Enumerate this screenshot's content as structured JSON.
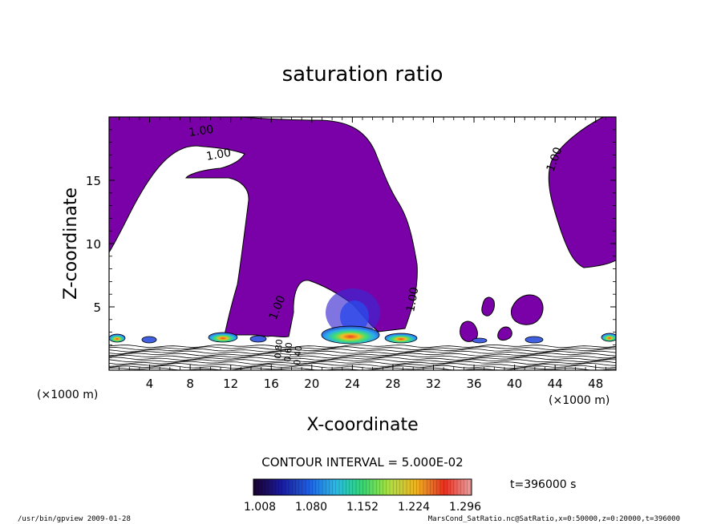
{
  "chart_data": {
    "type": "heatmap",
    "title": "saturation ratio",
    "xlabel": "X-coordinate",
    "ylabel": "Z-coordinate",
    "x_unit": "(×1000 m)",
    "x_unit_right": "(×1000 m)",
    "xlim": [
      0,
      50
    ],
    "ylim": [
      0,
      20
    ],
    "x_ticks": [
      4,
      8,
      12,
      16,
      20,
      24,
      28,
      32,
      36,
      40,
      44,
      48
    ],
    "y_ticks": [
      5,
      10,
      15
    ],
    "contour_labels": [
      "1.00",
      "1.00",
      "1.00",
      "1.00",
      "1.00",
      "0.80",
      "0.60",
      "0.40"
    ],
    "contour_interval_text": "CONTOUR INTERVAL = 5.000E-02",
    "time_text": "t=396000 s",
    "colorbar": {
      "tick_labels": [
        "1.008",
        "1.080",
        "1.152",
        "1.224",
        "1.296"
      ],
      "min": 1.008,
      "max": 1.296,
      "colors": [
        "#1a0030",
        "#1a1a9a",
        "#1e5ce0",
        "#2ab8e8",
        "#30d870",
        "#b0e040",
        "#f0b020",
        "#e83020",
        "#f0a0a0"
      ]
    },
    "fill_color": "#7a00a8",
    "footer_left": "/usr/bin/gpview   2009-01-28",
    "footer_right": "MarsCond_SatRatio.nc@SatRatio,x=0:50000,z=0:20000,t=396000"
  }
}
